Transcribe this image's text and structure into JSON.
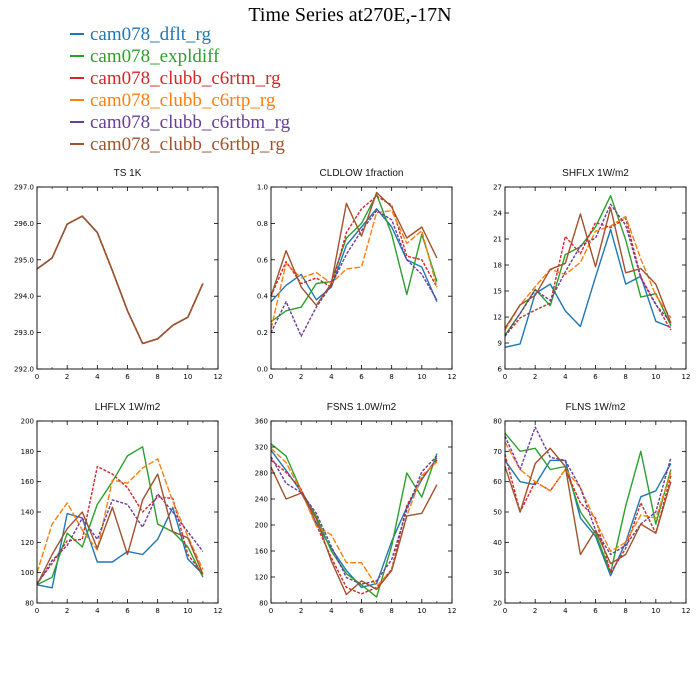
{
  "title": "Time Series at270E,-17N",
  "legend": [
    {
      "label": "cam078_dflt_rg",
      "color": "#1f77b4"
    },
    {
      "label": "cam078_expldiff",
      "color": "#2ca02c"
    },
    {
      "label": "cam078_clubb_c6rtm_rg",
      "color": "#d62728"
    },
    {
      "label": "cam078_clubb_c6rtp_rg",
      "color": "#ff7f0e"
    },
    {
      "label": "cam078_clubb_c6rtbm_rg",
      "color": "#6a3d9a"
    },
    {
      "label": "cam078_clubb_c6rtbp_rg",
      "color": "#a0522d"
    }
  ],
  "chart_data": [
    {
      "type": "line",
      "title": "TS   1K",
      "x": [
        0,
        1,
        2,
        3,
        4,
        5,
        6,
        7,
        8,
        9,
        10,
        11
      ],
      "xlim": [
        0,
        12
      ],
      "xticks": [
        "0",
        "2",
        "4",
        "6",
        "8",
        "10",
        "12"
      ],
      "ylim": [
        292,
        297
      ],
      "yticks": [
        "292.0",
        "293.0",
        "294.0",
        "295.0",
        "296.0",
        "297.0"
      ],
      "series": [
        {
          "name": "cam078_dflt_rg",
          "values": [
            294.75,
            295.05,
            295.98,
            296.2,
            295.75,
            294.7,
            293.6,
            292.7,
            292.83,
            293.2,
            293.42,
            294.35
          ]
        },
        {
          "name": "cam078_expldiff",
          "values": [
            294.75,
            295.05,
            295.98,
            296.2,
            295.75,
            294.7,
            293.6,
            292.7,
            292.83,
            293.2,
            293.42,
            294.35
          ]
        },
        {
          "name": "cam078_clubb_c6rtm_rg",
          "values": [
            294.75,
            295.05,
            295.98,
            296.2,
            295.75,
            294.7,
            293.6,
            292.7,
            292.83,
            293.2,
            293.42,
            294.35
          ]
        },
        {
          "name": "cam078_clubb_c6rtp_rg",
          "values": [
            294.75,
            295.05,
            295.98,
            296.2,
            295.75,
            294.7,
            293.6,
            292.7,
            292.83,
            293.2,
            293.42,
            294.35
          ]
        },
        {
          "name": "cam078_clubb_c6rtbm_rg",
          "values": [
            294.75,
            295.05,
            295.98,
            296.2,
            295.75,
            294.7,
            293.6,
            292.7,
            292.83,
            293.2,
            293.42,
            294.35
          ]
        },
        {
          "name": "cam078_clubb_c6rtbp_rg",
          "values": [
            294.75,
            295.05,
            295.98,
            296.2,
            295.75,
            294.7,
            293.6,
            292.7,
            292.83,
            293.2,
            293.42,
            294.35
          ]
        }
      ]
    },
    {
      "type": "line",
      "title": "CLDLOW   1fraction",
      "x": [
        0,
        1,
        2,
        3,
        4,
        5,
        6,
        7,
        8,
        9,
        10,
        11
      ],
      "xlim": [
        0,
        12
      ],
      "xticks": [
        "0",
        "2",
        "4",
        "6",
        "8",
        "10",
        "12"
      ],
      "ylim": [
        0,
        1
      ],
      "yticks": [
        "0.0",
        "0.2",
        "0.4",
        "0.6",
        "0.8",
        "1.0"
      ],
      "series": [
        {
          "name": "cam078_dflt_rg",
          "values": [
            0.37,
            0.46,
            0.52,
            0.38,
            0.45,
            0.68,
            0.78,
            0.88,
            0.78,
            0.6,
            0.56,
            0.37
          ]
        },
        {
          "name": "cam078_expldiff",
          "values": [
            0.26,
            0.32,
            0.34,
            0.47,
            0.48,
            0.72,
            0.8,
            0.96,
            0.74,
            0.41,
            0.74,
            0.48
          ]
        },
        {
          "name": "cam078_clubb_c6rtm_rg",
          "values": [
            0.4,
            0.59,
            0.47,
            0.5,
            0.45,
            0.75,
            0.88,
            0.95,
            0.9,
            0.62,
            0.6,
            0.45
          ]
        },
        {
          "name": "cam078_clubb_c6rtp_rg",
          "values": [
            0.22,
            0.58,
            0.5,
            0.53,
            0.47,
            0.55,
            0.56,
            0.86,
            0.87,
            0.69,
            0.76,
            0.45
          ]
        },
        {
          "name": "cam078_clubb_c6rtbm_rg",
          "values": [
            0.2,
            0.37,
            0.18,
            0.34,
            0.46,
            0.63,
            0.76,
            0.87,
            0.82,
            0.6,
            0.52,
            0.38
          ]
        },
        {
          "name": "cam078_clubb_c6rtbp_rg",
          "values": [
            0.4,
            0.65,
            0.45,
            0.35,
            0.47,
            0.91,
            0.73,
            0.97,
            0.89,
            0.72,
            0.78,
            0.61
          ]
        }
      ]
    },
    {
      "type": "line",
      "title": "SHFLX   1W/m2",
      "x": [
        0,
        1,
        2,
        3,
        4,
        5,
        6,
        7,
        8,
        9,
        10,
        11
      ],
      "xlim": [
        0,
        12
      ],
      "xticks": [
        "0",
        "2",
        "4",
        "6",
        "8",
        "10",
        "12"
      ],
      "ylim": [
        6,
        27
      ],
      "yticks": [
        "6",
        "9",
        "12",
        "15",
        "18",
        "21",
        "24",
        "27"
      ],
      "series": [
        {
          "name": "cam078_dflt_rg",
          "values": [
            8.5,
            8.9,
            14.7,
            15.8,
            12.7,
            10.9,
            16.6,
            22.1,
            15.8,
            16.7,
            11.5,
            10.8
          ]
        },
        {
          "name": "cam078_expldiff",
          "values": [
            9.9,
            12.4,
            15.2,
            13.3,
            19.2,
            20.1,
            22.4,
            26.0,
            20.9,
            14.3,
            14.7,
            11.0
          ]
        },
        {
          "name": "cam078_clubb_c6rtm_rg",
          "values": [
            9.8,
            11.9,
            12.8,
            13.6,
            21.3,
            19.3,
            22.9,
            22.3,
            23.4,
            16.6,
            13.5,
            10.5
          ]
        },
        {
          "name": "cam078_clubb_c6rtp_rg",
          "values": [
            10.5,
            13.4,
            15.5,
            17.5,
            16.9,
            18.3,
            21.9,
            22.5,
            23.6,
            18.7,
            14.5,
            11.9
          ]
        },
        {
          "name": "cam078_clubb_c6rtbm_rg",
          "values": [
            9.8,
            12.4,
            15.1,
            13.9,
            17.2,
            20.2,
            21.1,
            25.0,
            22.6,
            16.5,
            13.4,
            11.4
          ]
        },
        {
          "name": "cam078_clubb_c6rtbp_rg",
          "values": [
            10.7,
            13.4,
            14.5,
            17.5,
            18.2,
            23.9,
            17.8,
            24.6,
            17.1,
            17.6,
            15.8,
            11.3
          ]
        }
      ]
    },
    {
      "type": "line",
      "title": "LHFLX   1W/m2",
      "x": [
        0,
        1,
        2,
        3,
        4,
        5,
        6,
        7,
        8,
        9,
        10,
        11
      ],
      "xlim": [
        0,
        12
      ],
      "xticks": [
        "0",
        "2",
        "4",
        "6",
        "8",
        "10",
        "12"
      ],
      "ylim": [
        80,
        200
      ],
      "yticks": [
        "80",
        "100",
        "120",
        "140",
        "160",
        "180",
        "200"
      ],
      "series": [
        {
          "name": "cam078_dflt_rg",
          "values": [
            92,
            90,
            139,
            136,
            107,
            107,
            114,
            112,
            122,
            143,
            109,
            99
          ]
        },
        {
          "name": "cam078_expldiff",
          "values": [
            92,
            97,
            126,
            117,
            145,
            160,
            177,
            183,
            132,
            127,
            117,
            97
          ]
        },
        {
          "name": "cam078_clubb_c6rtm_rg",
          "values": [
            93,
            106,
            121,
            122,
            170,
            165,
            156,
            140,
            150,
            149,
            112,
            99
          ]
        },
        {
          "name": "cam078_clubb_c6rtp_rg",
          "values": [
            100,
            132,
            146,
            128,
            115,
            161,
            159,
            169,
            175,
            147,
            124,
            102
          ]
        },
        {
          "name": "cam078_clubb_c6rtbm_rg",
          "values": [
            92,
            108,
            118,
            136,
            122,
            148,
            145,
            130,
            152,
            140,
            127,
            114
          ]
        },
        {
          "name": "cam078_clubb_c6rtbp_rg",
          "values": [
            92,
            112,
            129,
            140,
            116,
            143,
            112,
            148,
            165,
            127,
            123,
            99
          ]
        }
      ]
    },
    {
      "type": "line",
      "title": "FSNS   1.0W/m2",
      "x": [
        0,
        1,
        2,
        3,
        4,
        5,
        6,
        7,
        8,
        9,
        10,
        11
      ],
      "xlim": [
        0,
        12
      ],
      "xticks": [
        "0",
        "2",
        "4",
        "6",
        "8",
        "10",
        "12"
      ],
      "ylim": [
        80,
        360
      ],
      "yticks": [
        "80",
        "120",
        "160",
        "200",
        "240",
        "280",
        "320",
        "360"
      ],
      "series": [
        {
          "name": "cam078_dflt_rg",
          "values": [
            315,
            284,
            251,
            203,
            164,
            130,
            104,
            110,
            175,
            227,
            270,
            303
          ]
        },
        {
          "name": "cam078_expldiff",
          "values": [
            325,
            306,
            253,
            213,
            160,
            125,
            108,
            89,
            168,
            280,
            243,
            310
          ]
        },
        {
          "name": "cam078_clubb_c6rtm_rg",
          "values": [
            300,
            281,
            255,
            200,
            150,
            104,
            94,
            104,
            132,
            230,
            272,
            300
          ]
        },
        {
          "name": "cam078_clubb_c6rtp_rg",
          "values": [
            318,
            296,
            252,
            198,
            185,
            142,
            142,
            106,
            130,
            214,
            276,
            297
          ]
        },
        {
          "name": "cam078_clubb_c6rtbm_rg",
          "values": [
            305,
            264,
            250,
            218,
            167,
            119,
            109,
            114,
            147,
            223,
            282,
            306
          ]
        },
        {
          "name": "cam078_clubb_c6rtbp_rg",
          "values": [
            289,
            240,
            249,
            210,
            145,
            93,
            114,
            101,
            130,
            214,
            218,
            262
          ]
        }
      ]
    },
    {
      "type": "line",
      "title": "FLNS   1W/m2",
      "x": [
        0,
        1,
        2,
        3,
        4,
        5,
        6,
        7,
        8,
        9,
        10,
        11
      ],
      "xlim": [
        0,
        12
      ],
      "xticks": [
        "0",
        "2",
        "4",
        "6",
        "8",
        "10",
        "12"
      ],
      "ylim": [
        20,
        80
      ],
      "yticks": [
        "20",
        "30",
        "40",
        "50",
        "60",
        "70",
        "80"
      ],
      "series": [
        {
          "name": "cam078_dflt_rg",
          "values": [
            67,
            60,
            59,
            67,
            67,
            48,
            42,
            29,
            40,
            55,
            57,
            66
          ]
        },
        {
          "name": "cam078_expldiff",
          "values": [
            76,
            70,
            71,
            64,
            65,
            50,
            43,
            30,
            52,
            70,
            46,
            64
          ]
        },
        {
          "name": "cam078_clubb_c6rtm_rg",
          "values": [
            69,
            50,
            60,
            57,
            64,
            53,
            48,
            30,
            38,
            53,
            43,
            62
          ]
        },
        {
          "name": "cam078_clubb_c6rtp_rg",
          "values": [
            73,
            64,
            60,
            57,
            64,
            58,
            47,
            37,
            40,
            49,
            48,
            63
          ]
        },
        {
          "name": "cam078_clubb_c6rtbm_rg",
          "values": [
            75,
            64,
            78,
            68,
            67,
            58,
            44,
            36,
            39,
            46,
            50,
            68
          ]
        },
        {
          "name": "cam078_clubb_c6rtbp_rg",
          "values": [
            65,
            50,
            66,
            71,
            65,
            36,
            44,
            33,
            36,
            46,
            43,
            60
          ]
        }
      ]
    }
  ]
}
